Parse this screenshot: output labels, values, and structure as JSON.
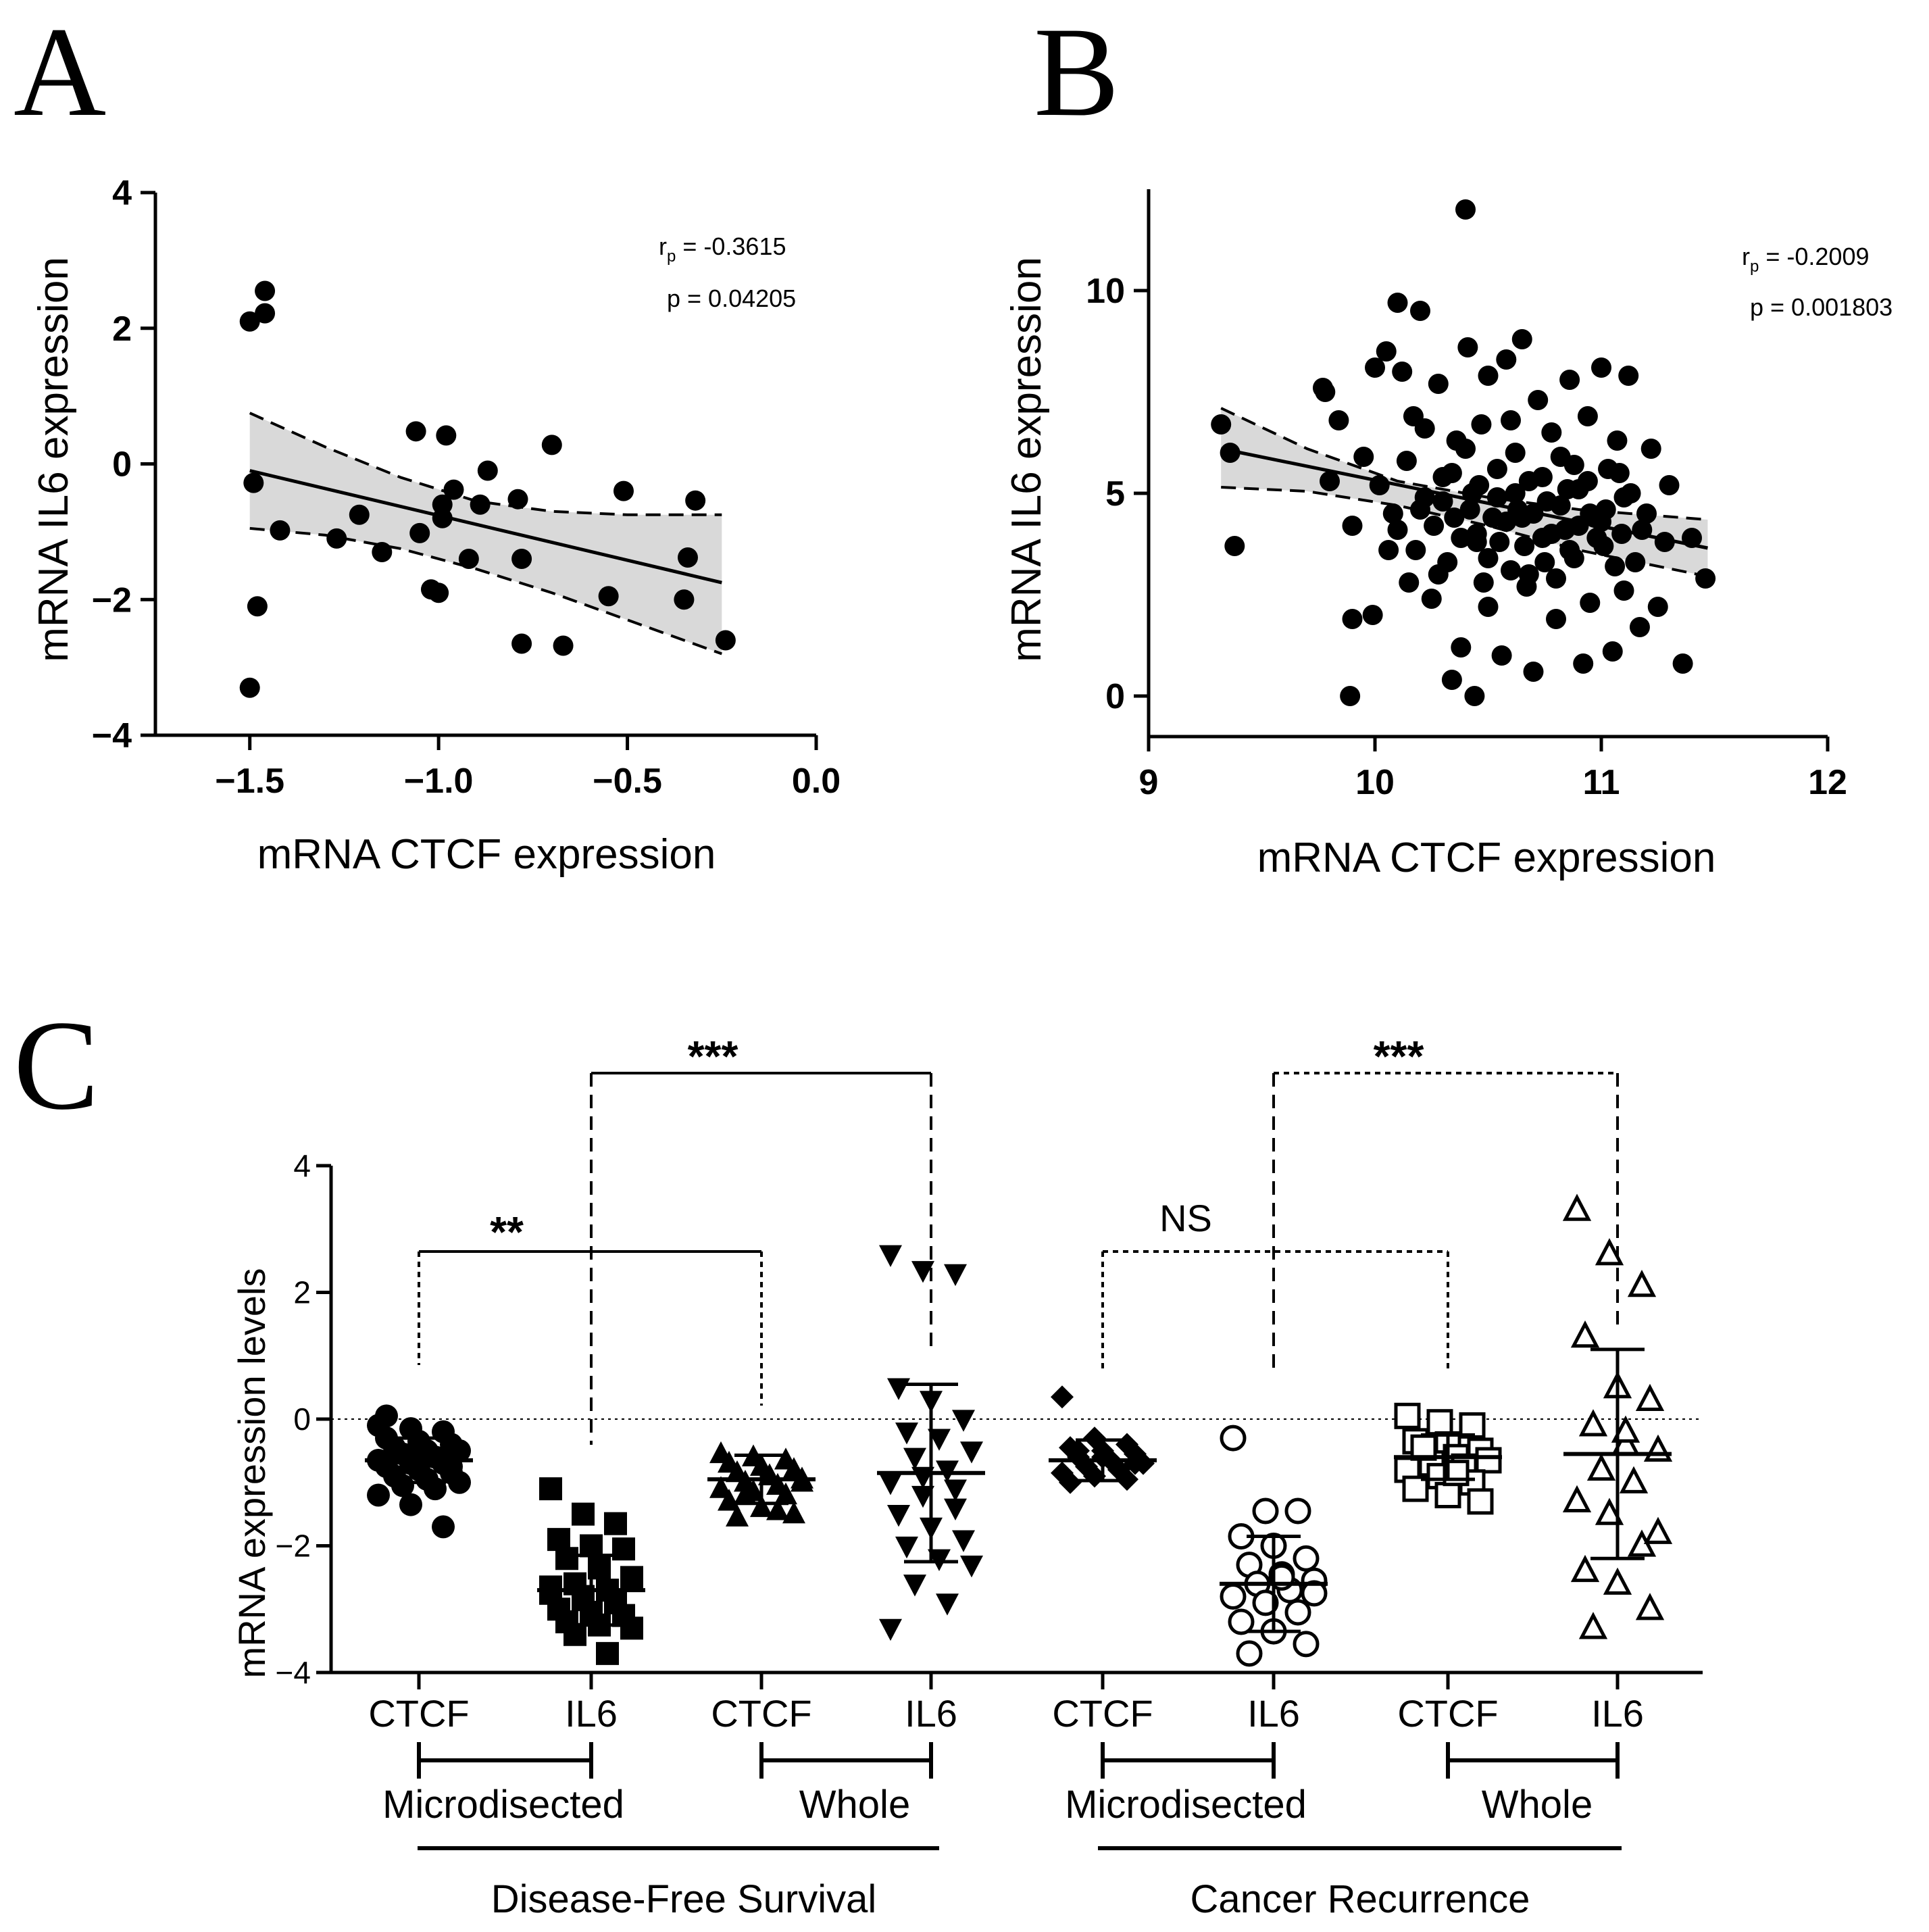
{
  "panels": {
    "a": "A",
    "b": "B",
    "c": "C"
  },
  "chart_data": [
    {
      "id": "A",
      "type": "scatter",
      "xlabel": "mRNA CTCF expression",
      "ylabel": "mRNA IL6 expression",
      "xlim": [
        -1.75,
        0.0
      ],
      "ylim": [
        -4,
        4
      ],
      "xticks": [
        -1.5,
        -1.0,
        -0.5,
        0.0
      ],
      "xtick_labels": [
        "−1.5",
        "−1.0",
        "−0.5",
        "0.0"
      ],
      "yticks": [
        -4,
        -2,
        0,
        2,
        4
      ],
      "ytick_labels": [
        "−4",
        "−2",
        "0",
        "2",
        "4"
      ],
      "r_label": "r",
      "r_sub": "p",
      "r_value": " = -0.3615",
      "p_text": "p = 0.04205",
      "regression": {
        "x": [
          -1.5,
          -0.25
        ],
        "y": [
          -0.1,
          -1.75
        ]
      },
      "ci_upper": [
        [
          -1.5,
          0.75
        ],
        [
          -1.3,
          0.25
        ],
        [
          -1.1,
          -0.2
        ],
        [
          -0.9,
          -0.55
        ],
        [
          -0.7,
          -0.7
        ],
        [
          -0.5,
          -0.75
        ],
        [
          -0.25,
          -0.75
        ]
      ],
      "ci_lower": [
        [
          -1.5,
          -0.95
        ],
        [
          -1.3,
          -1.05
        ],
        [
          -1.1,
          -1.25
        ],
        [
          -0.9,
          -1.55
        ],
        [
          -0.7,
          -1.9
        ],
        [
          -0.5,
          -2.3
        ],
        [
          -0.25,
          -2.8
        ]
      ],
      "points": [
        [
          -1.5,
          2.1
        ],
        [
          -1.46,
          2.55
        ],
        [
          -1.46,
          2.22
        ],
        [
          -1.49,
          -0.28
        ],
        [
          -1.48,
          -2.1
        ],
        [
          -1.5,
          -3.3
        ],
        [
          -1.42,
          -0.98
        ],
        [
          -1.27,
          -1.1
        ],
        [
          -1.21,
          -0.75
        ],
        [
          -1.15,
          -1.3
        ],
        [
          -1.06,
          0.48
        ],
        [
          -1.05,
          -1.02
        ],
        [
          -1.02,
          -1.85
        ],
        [
          -1.0,
          -1.9
        ],
        [
          -0.99,
          -0.6
        ],
        [
          -0.99,
          -0.8
        ],
        [
          -0.98,
          0.42
        ],
        [
          -0.96,
          -0.38
        ],
        [
          -0.92,
          -1.4
        ],
        [
          -0.89,
          -0.6
        ],
        [
          -0.87,
          -0.1
        ],
        [
          -0.79,
          -0.52
        ],
        [
          -0.78,
          -1.4
        ],
        [
          -0.78,
          -2.65
        ],
        [
          -0.7,
          0.28
        ],
        [
          -0.67,
          -2.68
        ],
        [
          -0.55,
          -1.95
        ],
        [
          -0.51,
          -0.4
        ],
        [
          -0.35,
          -2.0
        ],
        [
          -0.34,
          -1.38
        ],
        [
          -0.32,
          -0.54
        ],
        [
          -0.24,
          -2.6
        ]
      ]
    },
    {
      "id": "B",
      "type": "scatter",
      "xlabel": "mRNA CTCF expression",
      "ylabel": "mRNA IL6 expression",
      "xlim": [
        9,
        12
      ],
      "ylim": [
        -1,
        12.5
      ],
      "xticks": [
        9,
        10,
        11,
        12
      ],
      "xtick_labels": [
        "9",
        "10",
        "11",
        "12"
      ],
      "yticks": [
        0,
        5,
        10
      ],
      "ytick_labels": [
        "0",
        "5",
        "10"
      ],
      "r_label": "r",
      "r_sub": "p",
      "r_value": " = -0.2009",
      "p_text": "p = 0.001803",
      "regression": {
        "x": [
          9.32,
          11.47
        ],
        "y": [
          6.1,
          3.65
        ]
      },
      "ci_upper": [
        [
          9.32,
          7.1
        ],
        [
          9.7,
          6.1
        ],
        [
          10.1,
          5.3
        ],
        [
          10.5,
          4.9
        ],
        [
          10.9,
          4.6
        ],
        [
          11.47,
          4.35
        ]
      ],
      "ci_lower": [
        [
          9.32,
          5.15
        ],
        [
          9.7,
          5.05
        ],
        [
          10.1,
          4.7
        ],
        [
          10.5,
          4.2
        ],
        [
          10.9,
          3.6
        ],
        [
          11.47,
          2.95
        ]
      ],
      "points": [
        [
          9.32,
          6.7
        ],
        [
          9.36,
          6.0
        ],
        [
          9.38,
          3.7
        ],
        [
          9.77,
          7.6
        ],
        [
          9.78,
          7.5
        ],
        [
          9.8,
          5.3
        ],
        [
          9.84,
          6.8
        ],
        [
          9.89,
          0.0
        ],
        [
          9.9,
          1.9
        ],
        [
          9.9,
          4.2
        ],
        [
          9.95,
          5.9
        ],
        [
          9.99,
          2.0
        ],
        [
          10.0,
          8.1
        ],
        [
          10.02,
          5.2
        ],
        [
          10.05,
          8.5
        ],
        [
          10.06,
          3.6
        ],
        [
          10.08,
          4.5
        ],
        [
          10.1,
          9.7
        ],
        [
          10.12,
          8.0
        ],
        [
          10.15,
          2.8
        ],
        [
          10.17,
          6.9
        ],
        [
          10.2,
          9.5
        ],
        [
          10.22,
          4.9
        ],
        [
          10.25,
          2.4
        ],
        [
          10.28,
          7.7
        ],
        [
          10.3,
          5.4
        ],
        [
          10.32,
          3.3
        ],
        [
          10.34,
          0.4
        ],
        [
          10.36,
          6.3
        ],
        [
          10.38,
          1.2
        ],
        [
          10.4,
          12.0
        ],
        [
          10.41,
          8.6
        ],
        [
          10.43,
          5.0
        ],
        [
          10.44,
          0.0
        ],
        [
          10.45,
          3.8
        ],
        [
          10.47,
          6.7
        ],
        [
          10.5,
          7.9
        ],
        [
          10.5,
          2.2
        ],
        [
          10.52,
          4.4
        ],
        [
          10.54,
          5.6
        ],
        [
          10.56,
          1.0
        ],
        [
          10.58,
          8.3
        ],
        [
          10.6,
          3.1
        ],
        [
          10.62,
          6.0
        ],
        [
          10.63,
          4.6
        ],
        [
          10.65,
          8.8
        ],
        [
          10.67,
          2.7
        ],
        [
          10.68,
          5.3
        ],
        [
          10.7,
          0.6
        ],
        [
          10.72,
          7.3
        ],
        [
          10.74,
          3.9
        ],
        [
          10.76,
          4.8
        ],
        [
          10.78,
          6.5
        ],
        [
          10.8,
          1.9
        ],
        [
          10.82,
          5.9
        ],
        [
          10.84,
          4.1
        ],
        [
          10.86,
          7.8
        ],
        [
          10.88,
          3.4
        ],
        [
          10.9,
          5.1
        ],
        [
          10.92,
          0.8
        ],
        [
          10.94,
          6.9
        ],
        [
          10.95,
          2.3
        ],
        [
          10.97,
          4.4
        ],
        [
          11.0,
          8.1
        ],
        [
          11.01,
          3.7
        ],
        [
          11.03,
          5.6
        ],
        [
          11.05,
          1.1
        ],
        [
          11.07,
          6.3
        ],
        [
          11.09,
          4.0
        ],
        [
          11.1,
          2.6
        ],
        [
          11.12,
          7.9
        ],
        [
          11.13,
          5.0
        ],
        [
          11.15,
          3.3
        ],
        [
          11.17,
          1.7
        ],
        [
          11.2,
          4.5
        ],
        [
          11.22,
          6.1
        ],
        [
          11.25,
          2.2
        ],
        [
          11.28,
          3.8
        ],
        [
          11.3,
          5.2
        ],
        [
          11.36,
          0.8
        ],
        [
          11.4,
          3.9
        ],
        [
          11.46,
          2.9
        ],
        [
          10.1,
          4.1
        ],
        [
          10.14,
          5.8
        ],
        [
          10.18,
          3.6
        ],
        [
          10.22,
          6.6
        ],
        [
          10.26,
          4.2
        ],
        [
          10.3,
          4.8
        ],
        [
          10.34,
          5.5
        ],
        [
          10.38,
          3.9
        ],
        [
          10.42,
          4.6
        ],
        [
          10.46,
          5.2
        ],
        [
          10.5,
          3.4
        ],
        [
          10.54,
          4.9
        ],
        [
          10.58,
          4.3
        ],
        [
          10.62,
          5.0
        ],
        [
          10.66,
          3.7
        ],
        [
          10.7,
          4.5
        ],
        [
          10.74,
          5.4
        ],
        [
          10.78,
          4.0
        ],
        [
          10.82,
          4.7
        ],
        [
          10.86,
          3.6
        ],
        [
          10.9,
          4.2
        ],
        [
          10.94,
          5.3
        ],
        [
          10.98,
          3.9
        ],
        [
          11.02,
          4.6
        ],
        [
          11.06,
          3.2
        ],
        [
          11.1,
          4.9
        ],
        [
          10.35,
          4.4
        ],
        [
          10.45,
          4.0
        ],
        [
          10.55,
          3.8
        ],
        [
          10.65,
          4.4
        ],
        [
          10.75,
          3.3
        ],
        [
          10.85,
          5.1
        ],
        [
          10.95,
          4.5
        ],
        [
          10.28,
          3.0
        ],
        [
          10.4,
          6.1
        ],
        [
          10.6,
          6.8
        ],
        [
          10.8,
          2.9
        ],
        [
          11.0,
          4.3
        ],
        [
          10.2,
          4.6
        ],
        [
          10.48,
          2.8
        ],
        [
          10.68,
          3.0
        ],
        [
          10.88,
          5.7
        ],
        [
          11.08,
          5.5
        ],
        [
          11.18,
          4.1
        ]
      ]
    },
    {
      "id": "C",
      "type": "scatter",
      "ylabel": "mRNA expression levels",
      "ylim": [
        -4,
        4
      ],
      "yticks": [
        -4,
        -2,
        0,
        2,
        4
      ],
      "ytick_labels": [
        "−4",
        "−2",
        "0",
        "2",
        "4"
      ],
      "categories": [
        "CTCF",
        "IL6",
        "CTCF",
        "IL6",
        "CTCF",
        "IL6",
        "CTCF",
        "IL6"
      ],
      "subgroups": [
        "Microdisected",
        "Whole",
        "Microdisected",
        "Whole"
      ],
      "groups": [
        "Disease-Free Survival",
        "Cancer Recurrence"
      ],
      "series": [
        {
          "name": "DFS Microdisected CTCF",
          "marker": "circle",
          "filled": true,
          "mean": -0.65,
          "sd": 0.35,
          "values": [
            -0.1,
            -0.15,
            -0.2,
            -0.3,
            -0.35,
            -0.4,
            -0.45,
            -0.5,
            -0.5,
            -0.55,
            -0.6,
            -0.65,
            -0.7,
            -0.7,
            -0.75,
            -0.8,
            -0.85,
            -0.9,
            -0.95,
            -1.0,
            -1.05,
            -1.1,
            -1.2,
            -1.35,
            -1.7,
            0.05,
            -0.6,
            -0.75
          ]
        },
        {
          "name": "DFS Microdisected IL6",
          "marker": "square",
          "filled": true,
          "mean": -2.7,
          "sd": 0.55,
          "values": [
            -1.1,
            -1.5,
            -1.65,
            -1.9,
            -2.0,
            -2.05,
            -2.2,
            -2.35,
            -2.5,
            -2.6,
            -2.7,
            -2.75,
            -2.8,
            -2.9,
            -3.0,
            -3.05,
            -3.1,
            -3.2,
            -3.25,
            -3.3,
            -3.4,
            -3.7,
            -2.65,
            -2.85
          ]
        },
        {
          "name": "DFS Whole CTCF",
          "marker": "triangle-up",
          "filled": true,
          "mean": -0.95,
          "sd": 0.38,
          "values": [
            -0.55,
            -0.6,
            -0.65,
            -0.7,
            -0.75,
            -0.8,
            -0.85,
            -0.9,
            -0.95,
            -1.0,
            -1.05,
            -1.1,
            -1.15,
            -1.2,
            -1.3,
            -1.4,
            -1.5,
            -1.55,
            -0.9,
            -1.0,
            -1.2,
            -1.45
          ]
        },
        {
          "name": "DFS Whole IL6",
          "marker": "triangle-down",
          "filled": true,
          "mean": -0.85,
          "sd": 1.4,
          "values": [
            2.6,
            2.35,
            2.3,
            0.5,
            0.3,
            0.0,
            -0.2,
            -0.3,
            -0.5,
            -0.6,
            -0.8,
            -1.0,
            -1.2,
            -1.4,
            -1.5,
            -1.7,
            -1.9,
            -2.0,
            -2.2,
            -2.3,
            -2.6,
            -2.9,
            -3.3,
            -0.9,
            -1.1
          ]
        },
        {
          "name": "CR Microdisected CTCF",
          "marker": "diamond",
          "filled": true,
          "mean": -0.65,
          "sd": 0.32,
          "values": [
            0.35,
            -0.3,
            -0.4,
            -0.45,
            -0.5,
            -0.55,
            -0.6,
            -0.65,
            -0.7,
            -0.75,
            -0.8,
            -0.85,
            -0.9,
            -0.95,
            -1.0,
            -0.6,
            -0.7,
            -0.5
          ]
        },
        {
          "name": "CR Microdisected IL6",
          "marker": "circle",
          "filled": false,
          "mean": -2.6,
          "sd": 0.75,
          "values": [
            -0.3,
            -1.45,
            -1.45,
            -1.85,
            -2.0,
            -2.2,
            -2.3,
            -2.45,
            -2.55,
            -2.6,
            -2.7,
            -2.8,
            -2.9,
            -3.05,
            -3.2,
            -3.35,
            -3.55,
            -3.7,
            -2.5,
            -2.75
          ]
        },
        {
          "name": "CR Whole CTCF",
          "marker": "square",
          "filled": false,
          "mean": -0.6,
          "sd": 0.35,
          "values": [
            0.05,
            -0.05,
            -0.1,
            -0.35,
            -0.4,
            -0.5,
            -0.55,
            -0.6,
            -0.65,
            -0.7,
            -0.75,
            -0.8,
            -0.9,
            -1.0,
            -1.1,
            -1.2,
            -1.3,
            -0.45,
            -0.85
          ]
        },
        {
          "name": "CR Whole IL6",
          "marker": "triangle-up",
          "filled": false,
          "mean": -0.55,
          "sd": 1.65,
          "values": [
            3.3,
            2.6,
            2.1,
            1.3,
            0.5,
            0.3,
            -0.1,
            -0.4,
            -0.5,
            -0.8,
            -1.0,
            -1.3,
            -1.5,
            -2.0,
            -2.4,
            -2.6,
            -3.0,
            -3.3,
            -0.2,
            -1.8
          ]
        }
      ],
      "comparisons": [
        {
          "label": "**",
          "from": 0,
          "to": 2,
          "style": "solid"
        },
        {
          "label": "***",
          "from": 1,
          "to": 3,
          "style": "solid"
        },
        {
          "label": "NS",
          "from": 4,
          "to": 6,
          "style": "dashed"
        },
        {
          "label": "***",
          "from": 5,
          "to": 7,
          "style": "dashed"
        }
      ]
    }
  ]
}
